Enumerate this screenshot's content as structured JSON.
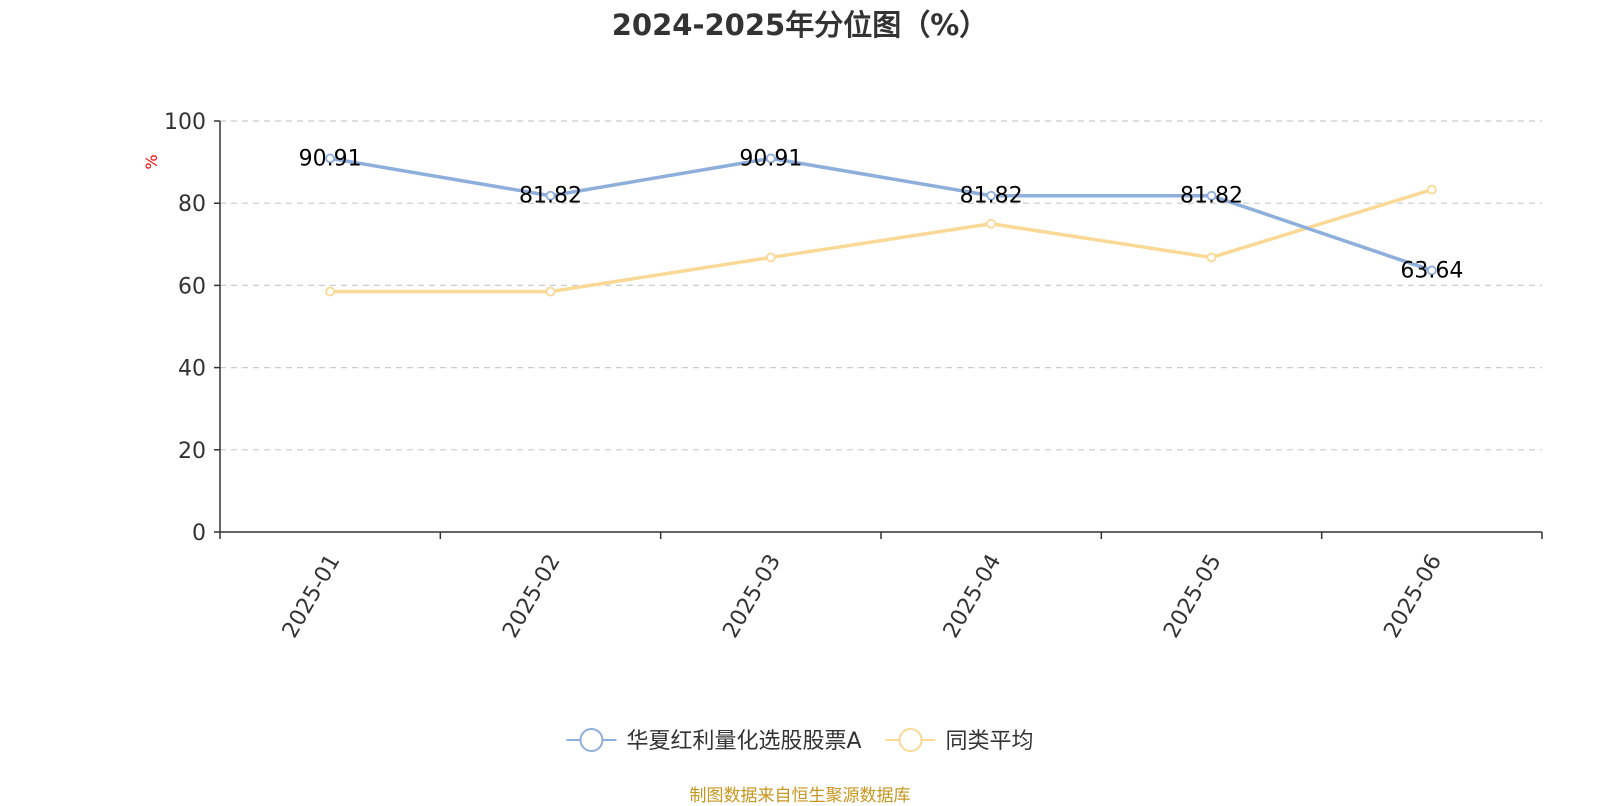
{
  "chart_data": {
    "type": "line",
    "title": "2024-2025年分位图（%）",
    "ylabel": "%",
    "xlabel": "",
    "categories": [
      "2025-01",
      "2025-02",
      "2025-03",
      "2025-04",
      "2025-05",
      "2025-06"
    ],
    "ylim": [
      0,
      100
    ],
    "yticks": [
      0,
      20,
      40,
      60,
      80,
      100
    ],
    "grid": true,
    "legend_position": "bottom",
    "series": [
      {
        "name": "华夏红利量化选股股票A",
        "values": [
          90.91,
          81.82,
          90.91,
          81.82,
          81.82,
          63.64
        ],
        "data_labels": [
          "90.91",
          "81.82",
          "90.91",
          "81.82",
          "81.82",
          "63.64"
        ],
        "color": "#8eaedb"
      },
      {
        "name": "同类平均",
        "values": [
          58.5,
          58.5,
          66.8,
          75.0,
          66.8,
          83.3
        ],
        "color": "#fad997"
      }
    ]
  },
  "footer": {
    "source_text": "制图数据来自恒生聚源数据库",
    "source_color": "#c8961e"
  },
  "colors": {
    "axis": "#333333",
    "grid": "#cccccc",
    "unit_label": "#ff0000"
  }
}
